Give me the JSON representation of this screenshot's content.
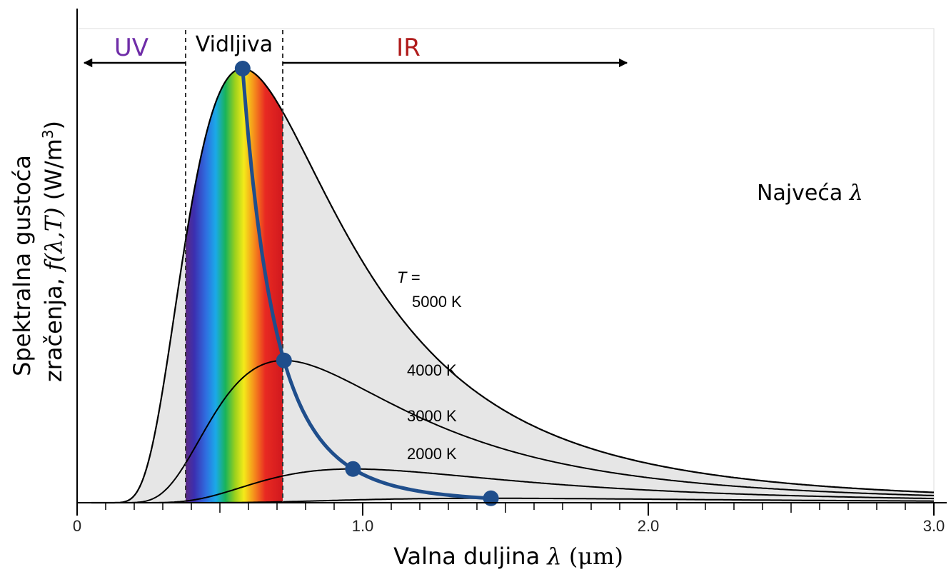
{
  "chart_data": {
    "type": "line",
    "xlabel_prefix": "Valna duljina ",
    "xlabel_symbol": "λ",
    "xlabel_unit": " (μm)",
    "ylabel_line1": "Spektralna gustoća",
    "ylabel_line2_prefix": "zračenja, ",
    "ylabel_line2_func": "f(λ,T)",
    "ylabel_line2_unit": " (W/m",
    "ylabel_line2_exp": "3",
    "ylabel_line2_close": ")",
    "xlim": [
      0,
      3.0
    ],
    "x_tick_labels": [
      "0",
      "1.0",
      "2.0",
      "3.0"
    ],
    "x_tick_values": [
      0,
      1.0,
      2.0,
      3.0
    ],
    "x_minor_step": 0.1,
    "region_labels": {
      "uv": "UV",
      "visible": "Vidljiva",
      "ir": "IR"
    },
    "region_colors": {
      "uv": "#6f2da8",
      "visible": "#000000",
      "ir": "#b01c1c"
    },
    "visible_range": [
      0.38,
      0.72
    ],
    "curve_label_prefix": "T =",
    "peak_label_prefix": "Najveća ",
    "peak_label_symbol": "λ",
    "peak_color": "#1f4e8c",
    "series": [
      {
        "name": "5000 K",
        "temperature": 5000
      },
      {
        "name": "4000 K",
        "temperature": 4000
      },
      {
        "name": "3000 K",
        "temperature": 3000
      },
      {
        "name": "2000 K",
        "temperature": 2000
      }
    ]
  }
}
